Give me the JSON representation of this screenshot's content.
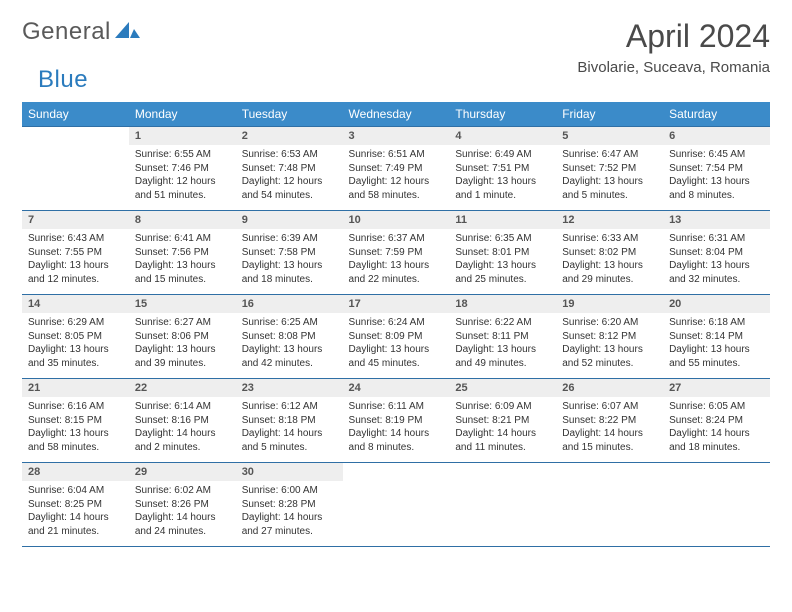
{
  "brand": {
    "part1": "General",
    "part2": "Blue"
  },
  "title": "April 2024",
  "location": "Bivolarie, Suceava, Romania",
  "colors": {
    "header_bg": "#3b8bc9",
    "header_text": "#ffffff",
    "daynum_bg": "#eeeeee",
    "rule": "#2f6fa5",
    "brand_gray": "#5a5a5a",
    "brand_blue": "#2b7bbd"
  },
  "typography": {
    "title_fontsize": 32,
    "location_fontsize": 15,
    "dayheader_fontsize": 12,
    "daynum_fontsize": 11,
    "detail_fontsize": 10
  },
  "day_headers": [
    "Sunday",
    "Monday",
    "Tuesday",
    "Wednesday",
    "Thursday",
    "Friday",
    "Saturday"
  ],
  "weeks": [
    {
      "nums": [
        "",
        "1",
        "2",
        "3",
        "4",
        "5",
        "6"
      ],
      "cells": [
        null,
        {
          "sunrise": "6:55 AM",
          "sunset": "7:46 PM",
          "daylight": "12 hours and 51 minutes."
        },
        {
          "sunrise": "6:53 AM",
          "sunset": "7:48 PM",
          "daylight": "12 hours and 54 minutes."
        },
        {
          "sunrise": "6:51 AM",
          "sunset": "7:49 PM",
          "daylight": "12 hours and 58 minutes."
        },
        {
          "sunrise": "6:49 AM",
          "sunset": "7:51 PM",
          "daylight": "13 hours and 1 minute."
        },
        {
          "sunrise": "6:47 AM",
          "sunset": "7:52 PM",
          "daylight": "13 hours and 5 minutes."
        },
        {
          "sunrise": "6:45 AM",
          "sunset": "7:54 PM",
          "daylight": "13 hours and 8 minutes."
        }
      ]
    },
    {
      "nums": [
        "7",
        "8",
        "9",
        "10",
        "11",
        "12",
        "13"
      ],
      "cells": [
        {
          "sunrise": "6:43 AM",
          "sunset": "7:55 PM",
          "daylight": "13 hours and 12 minutes."
        },
        {
          "sunrise": "6:41 AM",
          "sunset": "7:56 PM",
          "daylight": "13 hours and 15 minutes."
        },
        {
          "sunrise": "6:39 AM",
          "sunset": "7:58 PM",
          "daylight": "13 hours and 18 minutes."
        },
        {
          "sunrise": "6:37 AM",
          "sunset": "7:59 PM",
          "daylight": "13 hours and 22 minutes."
        },
        {
          "sunrise": "6:35 AM",
          "sunset": "8:01 PM",
          "daylight": "13 hours and 25 minutes."
        },
        {
          "sunrise": "6:33 AM",
          "sunset": "8:02 PM",
          "daylight": "13 hours and 29 minutes."
        },
        {
          "sunrise": "6:31 AM",
          "sunset": "8:04 PM",
          "daylight": "13 hours and 32 minutes."
        }
      ]
    },
    {
      "nums": [
        "14",
        "15",
        "16",
        "17",
        "18",
        "19",
        "20"
      ],
      "cells": [
        {
          "sunrise": "6:29 AM",
          "sunset": "8:05 PM",
          "daylight": "13 hours and 35 minutes."
        },
        {
          "sunrise": "6:27 AM",
          "sunset": "8:06 PM",
          "daylight": "13 hours and 39 minutes."
        },
        {
          "sunrise": "6:25 AM",
          "sunset": "8:08 PM",
          "daylight": "13 hours and 42 minutes."
        },
        {
          "sunrise": "6:24 AM",
          "sunset": "8:09 PM",
          "daylight": "13 hours and 45 minutes."
        },
        {
          "sunrise": "6:22 AM",
          "sunset": "8:11 PM",
          "daylight": "13 hours and 49 minutes."
        },
        {
          "sunrise": "6:20 AM",
          "sunset": "8:12 PM",
          "daylight": "13 hours and 52 minutes."
        },
        {
          "sunrise": "6:18 AM",
          "sunset": "8:14 PM",
          "daylight": "13 hours and 55 minutes."
        }
      ]
    },
    {
      "nums": [
        "21",
        "22",
        "23",
        "24",
        "25",
        "26",
        "27"
      ],
      "cells": [
        {
          "sunrise": "6:16 AM",
          "sunset": "8:15 PM",
          "daylight": "13 hours and 58 minutes."
        },
        {
          "sunrise": "6:14 AM",
          "sunset": "8:16 PM",
          "daylight": "14 hours and 2 minutes."
        },
        {
          "sunrise": "6:12 AM",
          "sunset": "8:18 PM",
          "daylight": "14 hours and 5 minutes."
        },
        {
          "sunrise": "6:11 AM",
          "sunset": "8:19 PM",
          "daylight": "14 hours and 8 minutes."
        },
        {
          "sunrise": "6:09 AM",
          "sunset": "8:21 PM",
          "daylight": "14 hours and 11 minutes."
        },
        {
          "sunrise": "6:07 AM",
          "sunset": "8:22 PM",
          "daylight": "14 hours and 15 minutes."
        },
        {
          "sunrise": "6:05 AM",
          "sunset": "8:24 PM",
          "daylight": "14 hours and 18 minutes."
        }
      ]
    },
    {
      "nums": [
        "28",
        "29",
        "30",
        "",
        "",
        "",
        ""
      ],
      "cells": [
        {
          "sunrise": "6:04 AM",
          "sunset": "8:25 PM",
          "daylight": "14 hours and 21 minutes."
        },
        {
          "sunrise": "6:02 AM",
          "sunset": "8:26 PM",
          "daylight": "14 hours and 24 minutes."
        },
        {
          "sunrise": "6:00 AM",
          "sunset": "8:28 PM",
          "daylight": "14 hours and 27 minutes."
        },
        null,
        null,
        null,
        null
      ]
    }
  ],
  "labels": {
    "sunrise": "Sunrise:",
    "sunset": "Sunset:",
    "daylight": "Daylight:"
  }
}
